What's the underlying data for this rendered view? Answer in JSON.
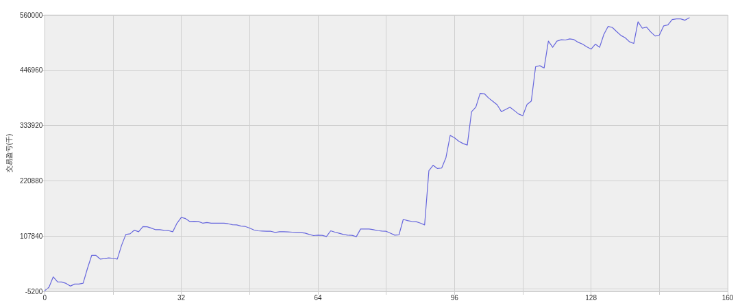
{
  "chart_data": {
    "type": "line",
    "ylabel": "交易盈亏(千)",
    "x": [
      0,
      1,
      2,
      3,
      4,
      5,
      6,
      7,
      8,
      9,
      10,
      11,
      12,
      13,
      14,
      15,
      16,
      17,
      18,
      19,
      20,
      21,
      22,
      23,
      24,
      25,
      26,
      27,
      28,
      29,
      30,
      31,
      32,
      33,
      34,
      35,
      36,
      37,
      38,
      39,
      40,
      41,
      42,
      43,
      44,
      45,
      46,
      47,
      48,
      49,
      50,
      51,
      52,
      53,
      54,
      55,
      56,
      57,
      58,
      59,
      60,
      61,
      62,
      63,
      64,
      65,
      66,
      67,
      68,
      69,
      70,
      71,
      72,
      73,
      74,
      75,
      76,
      77,
      78,
      79,
      80,
      81,
      82,
      83,
      84,
      85,
      86,
      87,
      88,
      89,
      90,
      91,
      92,
      93,
      94,
      95,
      96,
      97,
      98,
      99,
      100,
      101,
      102,
      103,
      104,
      105,
      106,
      107,
      108,
      109,
      110,
      111,
      112,
      113,
      114,
      115,
      116,
      117,
      118,
      119,
      120,
      121,
      122,
      123,
      124,
      125,
      126,
      127,
      128,
      129,
      130,
      131,
      132,
      133,
      134,
      135,
      136,
      137,
      138,
      139,
      140,
      141,
      142,
      143,
      144,
      145,
      146,
      147,
      148,
      149,
      150,
      151
    ],
    "series": [
      {
        "color": "#6666dd",
        "values": [
          -4000,
          3200,
          24500,
          14300,
          13800,
          11000,
          5500,
          9700,
          9700,
          11500,
          41300,
          68300,
          68300,
          60800,
          61800,
          63200,
          62300,
          60800,
          88700,
          111100,
          112500,
          119900,
          116700,
          127300,
          126900,
          124100,
          120800,
          120800,
          119500,
          119000,
          116700,
          134300,
          146000,
          143600,
          137600,
          138000,
          137600,
          134300,
          135700,
          134300,
          134300,
          134300,
          134300,
          133000,
          131100,
          130600,
          128300,
          127400,
          124200,
          120400,
          118600,
          118100,
          117600,
          117600,
          115300,
          116700,
          116700,
          116300,
          115800,
          115300,
          114900,
          113900,
          111100,
          108800,
          109700,
          109300,
          107000,
          118600,
          115800,
          113500,
          111100,
          109700,
          109300,
          106500,
          122300,
          122300,
          122300,
          120900,
          119000,
          118100,
          117600,
          113700,
          109700,
          110400,
          142000,
          139500,
          137800,
          137400,
          134400,
          130700,
          241400,
          252600,
          246000,
          247000,
          268400,
          313900,
          308800,
          301900,
          297200,
          294000,
          362300,
          371600,
          399600,
          399100,
          390200,
          383300,
          376300,
          362300,
          367000,
          371600,
          364700,
          357700,
          354000,
          377200,
          384200,
          454400,
          456300,
          451700,
          506600,
          494000,
          506600,
          509400,
          508900,
          511200,
          509800,
          504200,
          500500,
          494900,
          490300,
          500500,
          494000,
          520500,
          536800,
          534500,
          526100,
          518200,
          513500,
          505200,
          501900,
          546100,
          533100,
          535400,
          525200,
          517200,
          519100,
          537700,
          540000,
          550700,
          552100,
          552100,
          549400,
          554500
        ]
      }
    ],
    "xlim": [
      0,
      160
    ],
    "xticks": [
      0,
      {
        "value": 16,
        "label": null
      },
      32,
      {
        "value": 48,
        "label": null
      },
      64,
      {
        "value": 80,
        "label": null
      },
      96,
      {
        "value": 112,
        "label": null
      },
      128,
      {
        "value": 144,
        "label": null
      },
      160
    ],
    "ylim": [
      -5200,
      560000
    ],
    "yticks": [
      -5200,
      107840,
      220880,
      333920,
      446960,
      560000
    ],
    "ref_lines": [
      {
        "axis": "y",
        "value": 0,
        "color": "#d4d4d4"
      }
    ],
    "grid": true,
    "marker": "none",
    "line_style": "solid"
  }
}
